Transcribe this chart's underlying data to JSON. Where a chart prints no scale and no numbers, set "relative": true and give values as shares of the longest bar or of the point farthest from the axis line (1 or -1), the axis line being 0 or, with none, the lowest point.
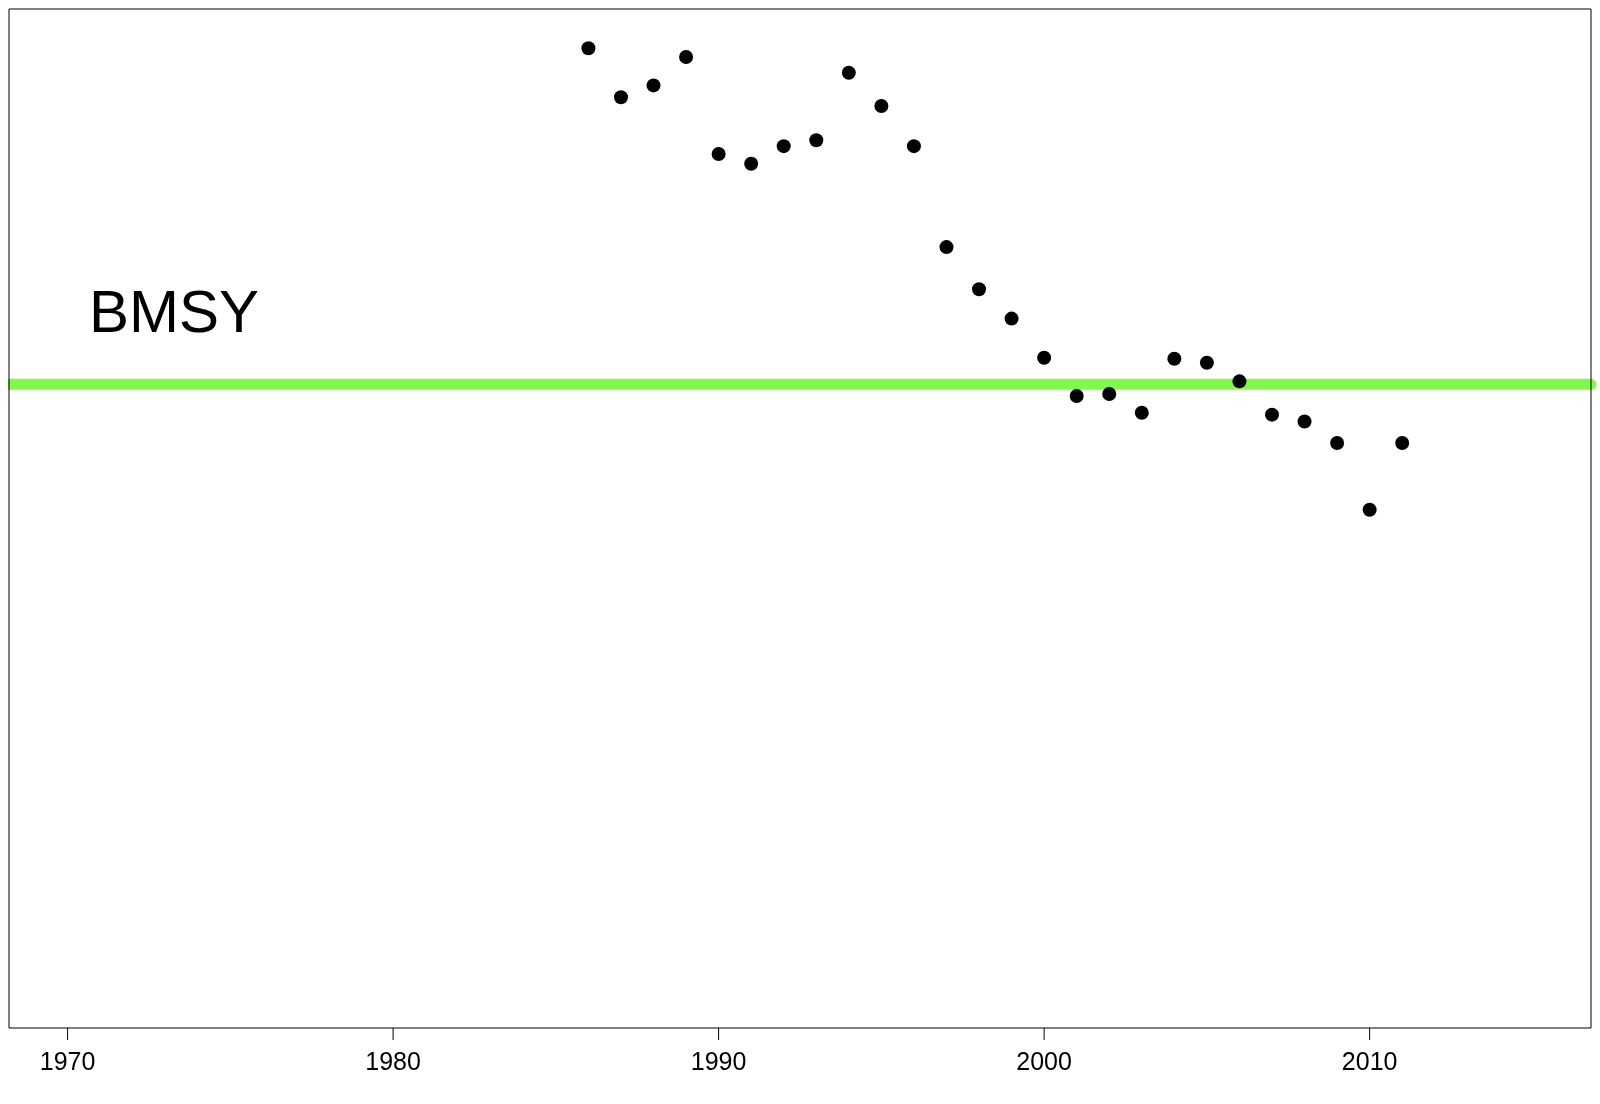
{
  "chart_data": {
    "type": "scatter",
    "relative": true,
    "x": [
      1986,
      1987,
      1988,
      1989,
      1990,
      1991,
      1992,
      1993,
      1994,
      1995,
      1996,
      1997,
      1998,
      1999,
      2000,
      2001,
      2002,
      2003,
      2004,
      2005,
      2006,
      2007,
      2008,
      2009,
      2010,
      2011
    ],
    "series": [
      {
        "color": "#000000",
        "values": [
          1.0,
          0.95,
          0.962,
          0.991,
          0.892,
          0.882,
          0.9,
          0.906,
          0.975,
          0.941,
          0.9,
          0.797,
          0.754,
          0.724,
          0.684,
          0.645,
          0.647,
          0.628,
          0.683,
          0.679,
          0.66,
          0.626,
          0.619,
          0.597,
          0.529,
          0.597
        ]
      }
    ],
    "xlim": [
      1968.2,
      2016.8
    ],
    "xticks": [
      1970,
      1980,
      1990,
      2000,
      2010
    ],
    "marker": "circle",
    "ref_lines": [
      {
        "axis": "y",
        "value": 0.657,
        "label": "BMSY",
        "color": "#80f94a"
      }
    ]
  }
}
